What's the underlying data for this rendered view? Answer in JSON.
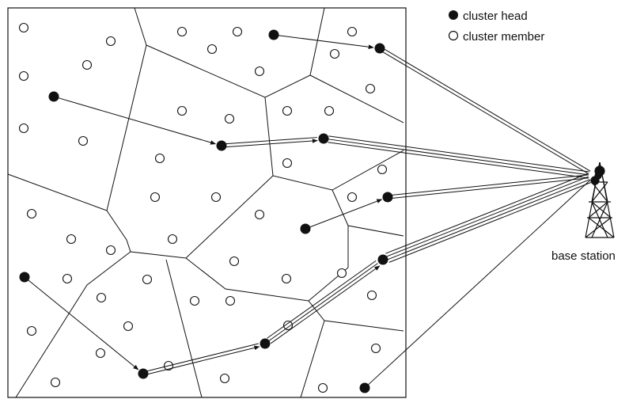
{
  "legend": {
    "items": [
      {
        "label": "cluster head",
        "symbol": "filled-dot-icon"
      },
      {
        "label": "cluster member",
        "symbol": "hollow-dot-icon"
      }
    ]
  },
  "base_station": {
    "label": "base station",
    "icon": "radio-tower-icon"
  },
  "colors": {
    "line": "#111111",
    "node_fill": "#111111",
    "member_fill": "#ffffff",
    "background": "#ffffff"
  }
}
